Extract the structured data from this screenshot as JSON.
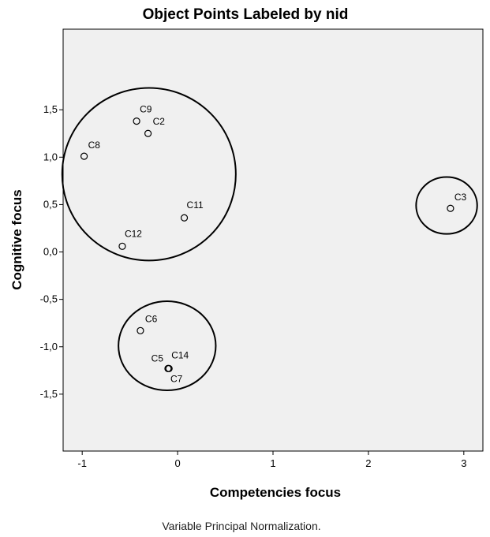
{
  "chart_data": {
    "type": "scatter",
    "title": "Object Points Labeled by nid",
    "xlabel": "Competencies focus",
    "ylabel": "Cognitive focus",
    "footnote": "Variable Principal Normalization.",
    "xlim": [
      -1.2,
      3.2
    ],
    "ylim": [
      -2.1,
      2.35
    ],
    "x_ticks": [
      -1,
      0,
      1,
      2,
      3
    ],
    "x_tick_labels": [
      "-1",
      "0",
      "1",
      "2",
      "3"
    ],
    "y_ticks": [
      1.5,
      1.0,
      0.5,
      0.0,
      -0.5,
      -1.0,
      -1.5
    ],
    "y_tick_labels": [
      "1,5",
      "1,0",
      "0,5",
      "0,0",
      "-0,5",
      "-1,0",
      "-1,5"
    ],
    "grid": false,
    "background_color": "#f0f0f0",
    "points": [
      {
        "label": "C9",
        "x": -0.43,
        "y": 1.38
      },
      {
        "label": "C2",
        "x": -0.31,
        "y": 1.25
      },
      {
        "label": "C8",
        "x": -0.98,
        "y": 1.01
      },
      {
        "label": "C11",
        "x": 0.07,
        "y": 0.36
      },
      {
        "label": "C12",
        "x": -0.58,
        "y": 0.06
      },
      {
        "label": "C3",
        "x": 2.86,
        "y": 0.46
      },
      {
        "label": "C6",
        "x": -0.39,
        "y": -0.83
      },
      {
        "label": "C5",
        "x": -0.1,
        "y": -1.23
      },
      {
        "label": "C14",
        "x": -0.09,
        "y": -1.23
      },
      {
        "label": "C7",
        "x": -0.1,
        "y": -1.23
      }
    ],
    "annotations": [
      {
        "type": "ellipse",
        "cx": -0.3,
        "cy": 0.82,
        "rx": 0.91,
        "ry": 0.91
      },
      {
        "type": "ellipse",
        "cx": 2.82,
        "cy": 0.49,
        "rx": 0.32,
        "ry": 0.3
      },
      {
        "type": "ellipse",
        "cx": -0.11,
        "cy": -0.99,
        "rx": 0.51,
        "ry": 0.47
      }
    ]
  }
}
